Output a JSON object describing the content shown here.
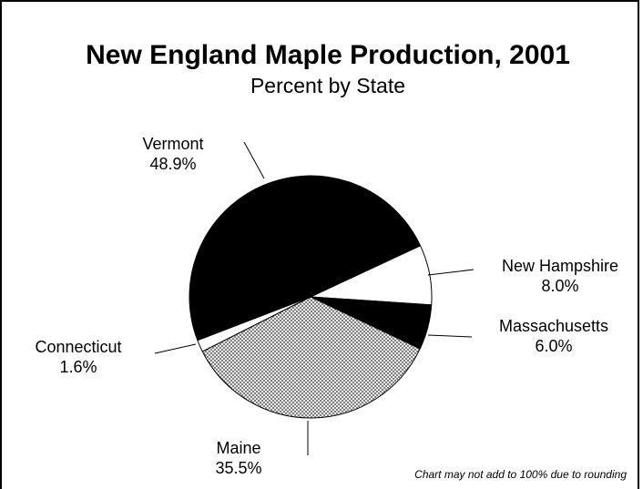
{
  "chart_data": {
    "type": "pie",
    "title": "New England Maple Production, 2001",
    "subtitle": "Percent  by State",
    "unit": "%",
    "slices": [
      {
        "name": "New Hampshire",
        "value": 8.0,
        "label": "8.0%",
        "color": "#ffffff",
        "pattern": "none"
      },
      {
        "name": "Massachusetts",
        "value": 6.0,
        "label": "6.0%",
        "color": "#000000",
        "pattern": "none"
      },
      {
        "name": "Maine",
        "value": 35.5,
        "label": "35.5%",
        "color": "#ffffff",
        "pattern": "crosshatch"
      },
      {
        "name": "Connecticut",
        "value": 1.6,
        "label": "1.6%",
        "color": "#ffffff",
        "pattern": "none"
      },
      {
        "name": "Vermont",
        "value": 48.9,
        "label": "48.9%",
        "color": "#000000",
        "pattern": "none"
      }
    ],
    "footnote": "Chart may not add to 100% due to rounding",
    "legend": "none",
    "grid": false
  }
}
